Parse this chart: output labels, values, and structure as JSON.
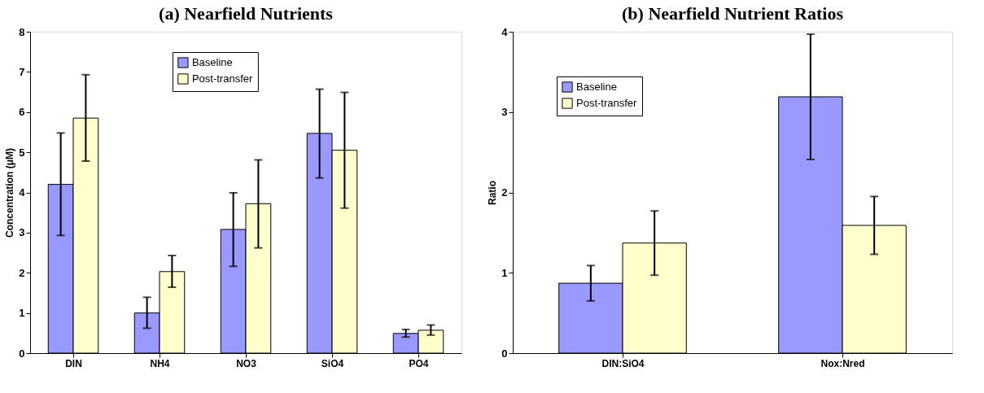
{
  "chart_data": [
    {
      "type": "bar",
      "title": "(a) Nearfield Nutrients",
      "ylabel": "Concentration (μM)",
      "categories": [
        "DIN",
        "NH4",
        "NO3",
        "SiO4",
        "PO4"
      ],
      "series": [
        {
          "name": "Baseline",
          "color": "#9999ff",
          "values": [
            4.2,
            1.0,
            3.08,
            5.47,
            0.49
          ],
          "errors": [
            [
              2.93,
              5.48
            ],
            [
              0.62,
              1.39
            ],
            [
              2.16,
              3.99
            ],
            [
              4.36,
              6.57
            ],
            [
              0.4,
              0.59
            ]
          ]
        },
        {
          "name": "Post-transfer",
          "color": "#ffffcc",
          "values": [
            5.85,
            2.03,
            3.72,
            5.05,
            0.57
          ],
          "errors": [
            [
              4.78,
              6.93
            ],
            [
              1.64,
              2.43
            ],
            [
              2.62,
              4.81
            ],
            [
              3.61,
              6.49
            ],
            [
              0.45,
              0.7
            ]
          ]
        }
      ],
      "ylim": [
        0,
        8
      ],
      "yticks": [
        0,
        1,
        2,
        3,
        4,
        5,
        6,
        7,
        8
      ],
      "grid": false,
      "legend": "top"
    },
    {
      "type": "bar",
      "title": "(b) Nearfield Nutrient Ratios",
      "ylabel": "Ratio",
      "categories": [
        "DIN:SiO4",
        "Nox:Nred"
      ],
      "series": [
        {
          "name": "Baseline",
          "color": "#9999ff",
          "values": [
            0.87,
            3.19
          ],
          "errors": [
            [
              0.65,
              1.09
            ],
            [
              2.41,
              3.97
            ]
          ]
        },
        {
          "name": "Post-transfer",
          "color": "#ffffcc",
          "values": [
            1.37,
            1.59
          ],
          "errors": [
            [
              0.97,
              1.77
            ],
            [
              1.23,
              1.95
            ]
          ]
        }
      ],
      "ylim": [
        0,
        4
      ],
      "yticks": [
        0,
        1,
        2,
        3,
        4
      ],
      "grid": false,
      "legend": "top left"
    }
  ]
}
